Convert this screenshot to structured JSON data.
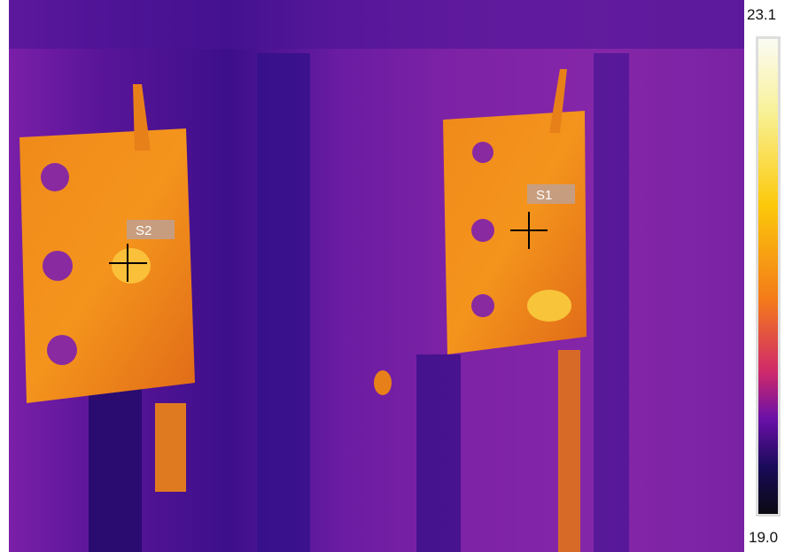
{
  "scale": {
    "max": "23.1",
    "min": "19.0"
  },
  "spots": [
    {
      "label": "S1"
    },
    {
      "label": "S2"
    }
  ]
}
